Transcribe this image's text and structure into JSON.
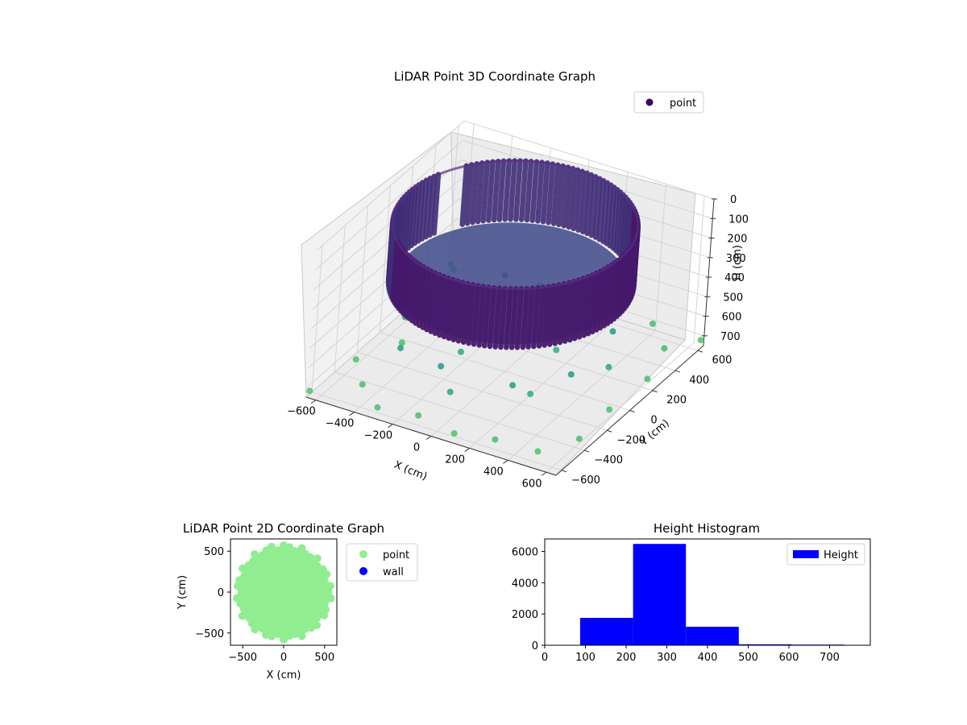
{
  "chart_data": [
    {
      "type": "scatter",
      "subtype": "3d",
      "title": "LiDAR Point 3D Coordinate Graph",
      "xlabel": "X (cm)",
      "ylabel": "Y (cm)",
      "zlabel": "H (cm)",
      "xticks": [
        -600,
        -400,
        -200,
        0,
        200,
        400,
        600
      ],
      "yticks": [
        -600,
        -400,
        -200,
        0,
        200,
        400,
        600
      ],
      "zticks": [
        0,
        100,
        200,
        300,
        400,
        500,
        600,
        700
      ],
      "xlim": [
        -650,
        650
      ],
      "ylim": [
        -650,
        650
      ],
      "zlim": [
        0,
        750
      ],
      "z_inverted": true,
      "grid": true,
      "colormap": "viridis",
      "legend": {
        "position": "top-right",
        "entries": [
          {
            "label": "point",
            "color": "#440154"
          }
        ]
      },
      "series": [
        {
          "name": "point",
          "shape": "cylindrical wall with scattered points beneath",
          "wall_radius": 550,
          "wall_height_range": [
            0,
            300
          ],
          "floor_height_range": [
            300,
            400
          ],
          "scatter_points": [
            {
              "x": -650,
              "y": 620,
              "h": 720
            },
            {
              "x": -600,
              "y": 560,
              "h": 700
            },
            {
              "x": -620,
              "y": 300,
              "h": 710
            },
            {
              "x": -520,
              "y": 180,
              "h": 690
            },
            {
              "x": -480,
              "y": -100,
              "h": 700
            },
            {
              "x": -600,
              "y": -300,
              "h": 720
            },
            {
              "x": -450,
              "y": -500,
              "h": 700
            },
            {
              "x": -300,
              "y": -620,
              "h": 710
            },
            {
              "x": -100,
              "y": -600,
              "h": 700
            },
            {
              "x": 100,
              "y": -620,
              "h": 720
            },
            {
              "x": 300,
              "y": -600,
              "h": 700
            },
            {
              "x": 500,
              "y": -560,
              "h": 720
            },
            {
              "x": 620,
              "y": -400,
              "h": 700
            },
            {
              "x": 600,
              "y": -100,
              "h": 710
            },
            {
              "x": 620,
              "y": 200,
              "h": 700
            },
            {
              "x": 560,
              "y": 450,
              "h": 690
            },
            {
              "x": 400,
              "y": 620,
              "h": 700
            },
            {
              "x": -200,
              "y": 640,
              "h": 700
            },
            {
              "x": 640,
              "y": 640,
              "h": 720
            },
            {
              "x": -640,
              "y": -640,
              "h": 720
            },
            {
              "x": -350,
              "y": -350,
              "h": 560
            },
            {
              "x": -100,
              "y": -420,
              "h": 540
            },
            {
              "x": 250,
              "y": -380,
              "h": 550
            },
            {
              "x": 420,
              "y": -150,
              "h": 560
            },
            {
              "x": 400,
              "y": 250,
              "h": 550
            },
            {
              "x": -420,
              "y": 200,
              "h": 560
            },
            {
              "x": -250,
              "y": 400,
              "h": 540
            },
            {
              "x": 150,
              "y": 420,
              "h": 550
            },
            {
              "x": -500,
              "y": -50,
              "h": 600
            },
            {
              "x": 500,
              "y": 50,
              "h": 600
            },
            {
              "x": 0,
              "y": -500,
              "h": 600
            },
            {
              "x": -150,
              "y": -150,
              "h": 620
            },
            {
              "x": 200,
              "y": 100,
              "h": 630
            },
            {
              "x": -300,
              "y": 100,
              "h": 610
            },
            {
              "x": 300,
              "y": -300,
              "h": 620
            }
          ]
        }
      ]
    },
    {
      "type": "scatter",
      "title": "LiDAR Point 2D Coordinate Graph",
      "xlabel": "X (cm)",
      "ylabel": "Y (cm)",
      "xticks": [
        -500,
        0,
        500
      ],
      "yticks": [
        -500,
        0,
        500
      ],
      "xlim": [
        -650,
        650
      ],
      "ylim": [
        -650,
        650
      ],
      "grid": false,
      "legend": {
        "position": "outside-right",
        "entries": [
          {
            "label": "point",
            "color": "#90ee90"
          },
          {
            "label": "wall",
            "color": "#0000ff"
          }
        ]
      },
      "series": [
        {
          "name": "point",
          "color": "#90ee90",
          "shape": "filled disk",
          "radius": 560
        },
        {
          "name": "wall",
          "color": "#0000ff",
          "points": []
        }
      ]
    },
    {
      "type": "bar",
      "subtype": "histogram",
      "title": "Height Histogram",
      "xticks": [
        0,
        100,
        200,
        300,
        400,
        500,
        600,
        700
      ],
      "yticks": [
        0,
        2000,
        4000,
        6000
      ],
      "xlim": [
        0,
        800
      ],
      "ylim": [
        0,
        6800
      ],
      "color": "#0000ff",
      "legend": {
        "position": "top-right",
        "entries": [
          {
            "label": "Height",
            "color": "#0000ff"
          }
        ]
      },
      "bins": [
        {
          "start": 87,
          "end": 217,
          "count": 1750
        },
        {
          "start": 217,
          "end": 347,
          "count": 6480
        },
        {
          "start": 347,
          "end": 477,
          "count": 1180
        },
        {
          "start": 477,
          "end": 607,
          "count": 60
        },
        {
          "start": 607,
          "end": 737,
          "count": 40
        }
      ]
    }
  ]
}
